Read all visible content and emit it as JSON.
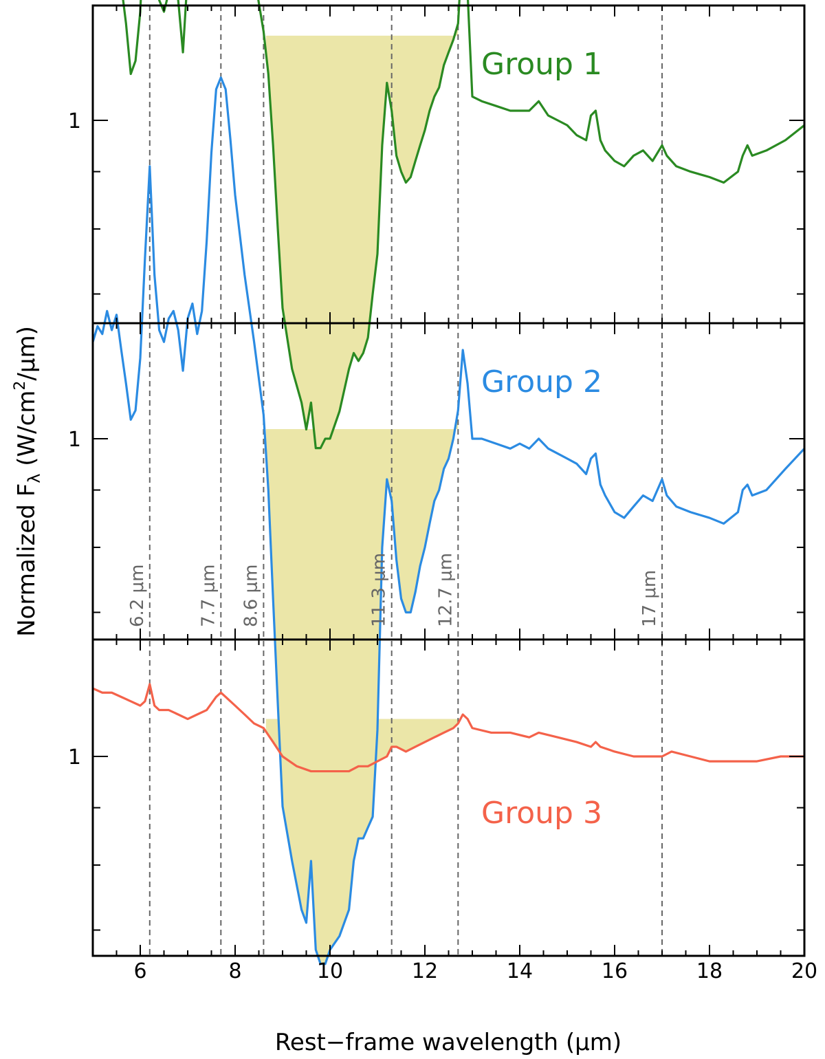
{
  "chart_data": {
    "type": "line",
    "xlabel": "Rest−frame wavelength (μm)",
    "ylabel": "Normalized F",
    "ylabel_sub": "λ",
    "ylabel_units_pre": " (W/cm",
    "ylabel_units_sup": "2",
    "ylabel_units_post": "/μm)",
    "xlim": [
      5,
      20
    ],
    "x_ticks": [
      6,
      8,
      10,
      12,
      14,
      16,
      18,
      20
    ],
    "y_scale": "log",
    "y_tick_label": "1",
    "grid": false,
    "feature_lines": [
      {
        "x": 6.2,
        "label": "6.2 μm"
      },
      {
        "x": 7.7,
        "label": "7.7 μm"
      },
      {
        "x": 8.6,
        "label": "8.6 μm"
      },
      {
        "x": 11.3,
        "label": "11.3 μm"
      },
      {
        "x": 12.7,
        "label": "12.7 μm"
      },
      {
        "x": 17,
        "label": "17 μm"
      }
    ],
    "panels": [
      {
        "name": "Group 1",
        "color": "#2a8a22",
        "fill_range": [
          8.65,
          12.7
        ],
        "fill_top": 1.19,
        "x": [
          5.0,
          5.1,
          5.2,
          5.3,
          5.4,
          5.5,
          5.6,
          5.7,
          5.8,
          5.9,
          6.0,
          6.1,
          6.2,
          6.3,
          6.4,
          6.5,
          6.6,
          6.7,
          6.8,
          6.9,
          7.0,
          7.1,
          7.2,
          7.3,
          7.4,
          7.5,
          7.6,
          7.7,
          7.8,
          7.9,
          8.0,
          8.2,
          8.4,
          8.6,
          8.7,
          8.8,
          8.9,
          9.0,
          9.2,
          9.4,
          9.5,
          9.6,
          9.7,
          9.8,
          9.9,
          10.0,
          10.2,
          10.4,
          10.5,
          10.6,
          10.7,
          10.8,
          10.9,
          11.0,
          11.1,
          11.2,
          11.3,
          11.4,
          11.5,
          11.6,
          11.7,
          11.8,
          11.9,
          12.0,
          12.1,
          12.2,
          12.3,
          12.4,
          12.5,
          12.6,
          12.7,
          12.8,
          12.9,
          13.0,
          13.2,
          13.5,
          13.8,
          14.0,
          14.2,
          14.4,
          14.6,
          14.8,
          15.0,
          15.2,
          15.4,
          15.5,
          15.6,
          15.7,
          15.8,
          16.0,
          16.2,
          16.4,
          16.6,
          16.8,
          17.0,
          17.1,
          17.3,
          17.6,
          18.0,
          18.3,
          18.6,
          18.7,
          18.8,
          18.9,
          19.2,
          19.6,
          20.0
        ],
        "y": [
          1.38,
          1.42,
          1.4,
          1.45,
          1.41,
          1.44,
          1.32,
          1.22,
          1.1,
          1.13,
          1.25,
          1.55,
          2.05,
          1.55,
          1.28,
          1.25,
          1.3,
          1.32,
          1.28,
          1.15,
          1.35,
          1.4,
          1.3,
          1.38,
          1.6,
          1.9,
          2.2,
          2.25,
          2.18,
          2.0,
          1.8,
          1.5,
          1.35,
          1.2,
          1.1,
          0.95,
          0.8,
          0.68,
          0.6,
          0.56,
          0.53,
          0.56,
          0.51,
          0.51,
          0.52,
          0.52,
          0.55,
          0.6,
          0.62,
          0.61,
          0.62,
          0.64,
          0.7,
          0.76,
          0.95,
          1.08,
          1.02,
          0.93,
          0.9,
          0.88,
          0.89,
          0.92,
          0.95,
          0.98,
          1.02,
          1.05,
          1.07,
          1.12,
          1.15,
          1.18,
          1.22,
          1.45,
          1.3,
          1.05,
          1.04,
          1.03,
          1.02,
          1.02,
          1.02,
          1.04,
          1.01,
          1.0,
          0.99,
          0.97,
          0.96,
          1.01,
          1.02,
          0.96,
          0.94,
          0.92,
          0.91,
          0.93,
          0.94,
          0.92,
          0.95,
          0.93,
          0.91,
          0.9,
          0.89,
          0.88,
          0.9,
          0.93,
          0.95,
          0.93,
          0.94,
          0.96,
          0.99
        ]
      },
      {
        "name": "Group 2",
        "color": "#2b8be2",
        "fill_range": [
          8.65,
          12.7
        ],
        "fill_top": 1.02,
        "x": [
          5.0,
          5.1,
          5.2,
          5.3,
          5.4,
          5.5,
          5.6,
          5.7,
          5.8,
          5.9,
          6.0,
          6.1,
          6.2,
          6.3,
          6.4,
          6.5,
          6.6,
          6.7,
          6.8,
          6.9,
          7.0,
          7.1,
          7.2,
          7.3,
          7.4,
          7.5,
          7.6,
          7.7,
          7.8,
          7.9,
          8.0,
          8.2,
          8.4,
          8.6,
          8.7,
          8.8,
          8.9,
          9.0,
          9.2,
          9.4,
          9.5,
          9.6,
          9.7,
          9.8,
          9.9,
          10.0,
          10.2,
          10.4,
          10.5,
          10.6,
          10.7,
          10.8,
          10.9,
          11.0,
          11.1,
          11.2,
          11.3,
          11.4,
          11.5,
          11.6,
          11.7,
          11.8,
          11.9,
          12.0,
          12.1,
          12.2,
          12.3,
          12.4,
          12.5,
          12.6,
          12.7,
          12.8,
          12.9,
          13.0,
          13.2,
          13.5,
          13.8,
          14.0,
          14.2,
          14.4,
          14.6,
          14.8,
          15.0,
          15.2,
          15.4,
          15.5,
          15.6,
          15.7,
          15.8,
          16.0,
          16.2,
          16.4,
          16.6,
          16.8,
          17.0,
          17.1,
          17.3,
          17.6,
          18.0,
          18.3,
          18.6,
          18.7,
          18.8,
          18.9,
          19.2,
          19.6,
          20.0
        ],
        "y": [
          1.22,
          1.26,
          1.24,
          1.3,
          1.25,
          1.29,
          1.2,
          1.12,
          1.04,
          1.06,
          1.18,
          1.45,
          1.75,
          1.4,
          1.25,
          1.22,
          1.28,
          1.3,
          1.25,
          1.15,
          1.28,
          1.32,
          1.24,
          1.3,
          1.5,
          1.8,
          2.05,
          2.1,
          2.05,
          1.85,
          1.65,
          1.4,
          1.22,
          1.05,
          0.9,
          0.72,
          0.58,
          0.47,
          0.42,
          0.38,
          0.37,
          0.42,
          0.35,
          0.34,
          0.34,
          0.35,
          0.36,
          0.38,
          0.42,
          0.44,
          0.44,
          0.45,
          0.46,
          0.55,
          0.8,
          0.92,
          0.88,
          0.78,
          0.72,
          0.7,
          0.7,
          0.73,
          0.77,
          0.8,
          0.84,
          0.88,
          0.9,
          0.94,
          0.96,
          1.0,
          1.06,
          1.2,
          1.12,
          1.0,
          1.0,
          0.99,
          0.98,
          0.99,
          0.98,
          1.0,
          0.98,
          0.97,
          0.96,
          0.95,
          0.93,
          0.96,
          0.97,
          0.91,
          0.89,
          0.86,
          0.85,
          0.87,
          0.89,
          0.88,
          0.92,
          0.89,
          0.87,
          0.86,
          0.85,
          0.84,
          0.86,
          0.9,
          0.91,
          0.89,
          0.9,
          0.94,
          0.98
        ]
      },
      {
        "name": "Group 3",
        "color": "#f4624a",
        "fill_range": [
          8.65,
          12.7
        ],
        "fill_top": 1.08,
        "x": [
          5.0,
          5.2,
          5.4,
          5.6,
          5.8,
          6.0,
          6.1,
          6.2,
          6.3,
          6.4,
          6.6,
          6.8,
          7.0,
          7.2,
          7.4,
          7.6,
          7.7,
          7.8,
          8.0,
          8.2,
          8.4,
          8.6,
          8.8,
          9.0,
          9.3,
          9.6,
          10.0,
          10.4,
          10.6,
          10.8,
          11.0,
          11.2,
          11.3,
          11.4,
          11.6,
          11.8,
          12.0,
          12.2,
          12.4,
          12.6,
          12.7,
          12.8,
          12.9,
          13.0,
          13.4,
          13.8,
          14.2,
          14.4,
          14.8,
          15.2,
          15.5,
          15.6,
          15.7,
          16.0,
          16.4,
          16.8,
          17.0,
          17.2,
          17.6,
          18.0,
          18.5,
          19.0,
          19.5,
          20.0
        ],
        "y": [
          1.15,
          1.14,
          1.14,
          1.13,
          1.12,
          1.11,
          1.12,
          1.16,
          1.11,
          1.1,
          1.1,
          1.09,
          1.08,
          1.09,
          1.1,
          1.13,
          1.14,
          1.13,
          1.11,
          1.09,
          1.07,
          1.06,
          1.03,
          1.0,
          0.98,
          0.97,
          0.97,
          0.97,
          0.98,
          0.98,
          0.99,
          1.0,
          1.02,
          1.02,
          1.01,
          1.02,
          1.03,
          1.04,
          1.05,
          1.06,
          1.07,
          1.09,
          1.08,
          1.06,
          1.05,
          1.05,
          1.04,
          1.05,
          1.04,
          1.03,
          1.02,
          1.03,
          1.02,
          1.01,
          1.0,
          1.0,
          1.0,
          1.01,
          1.0,
          0.99,
          0.99,
          0.99,
          1.0,
          1.0
        ]
      }
    ]
  }
}
